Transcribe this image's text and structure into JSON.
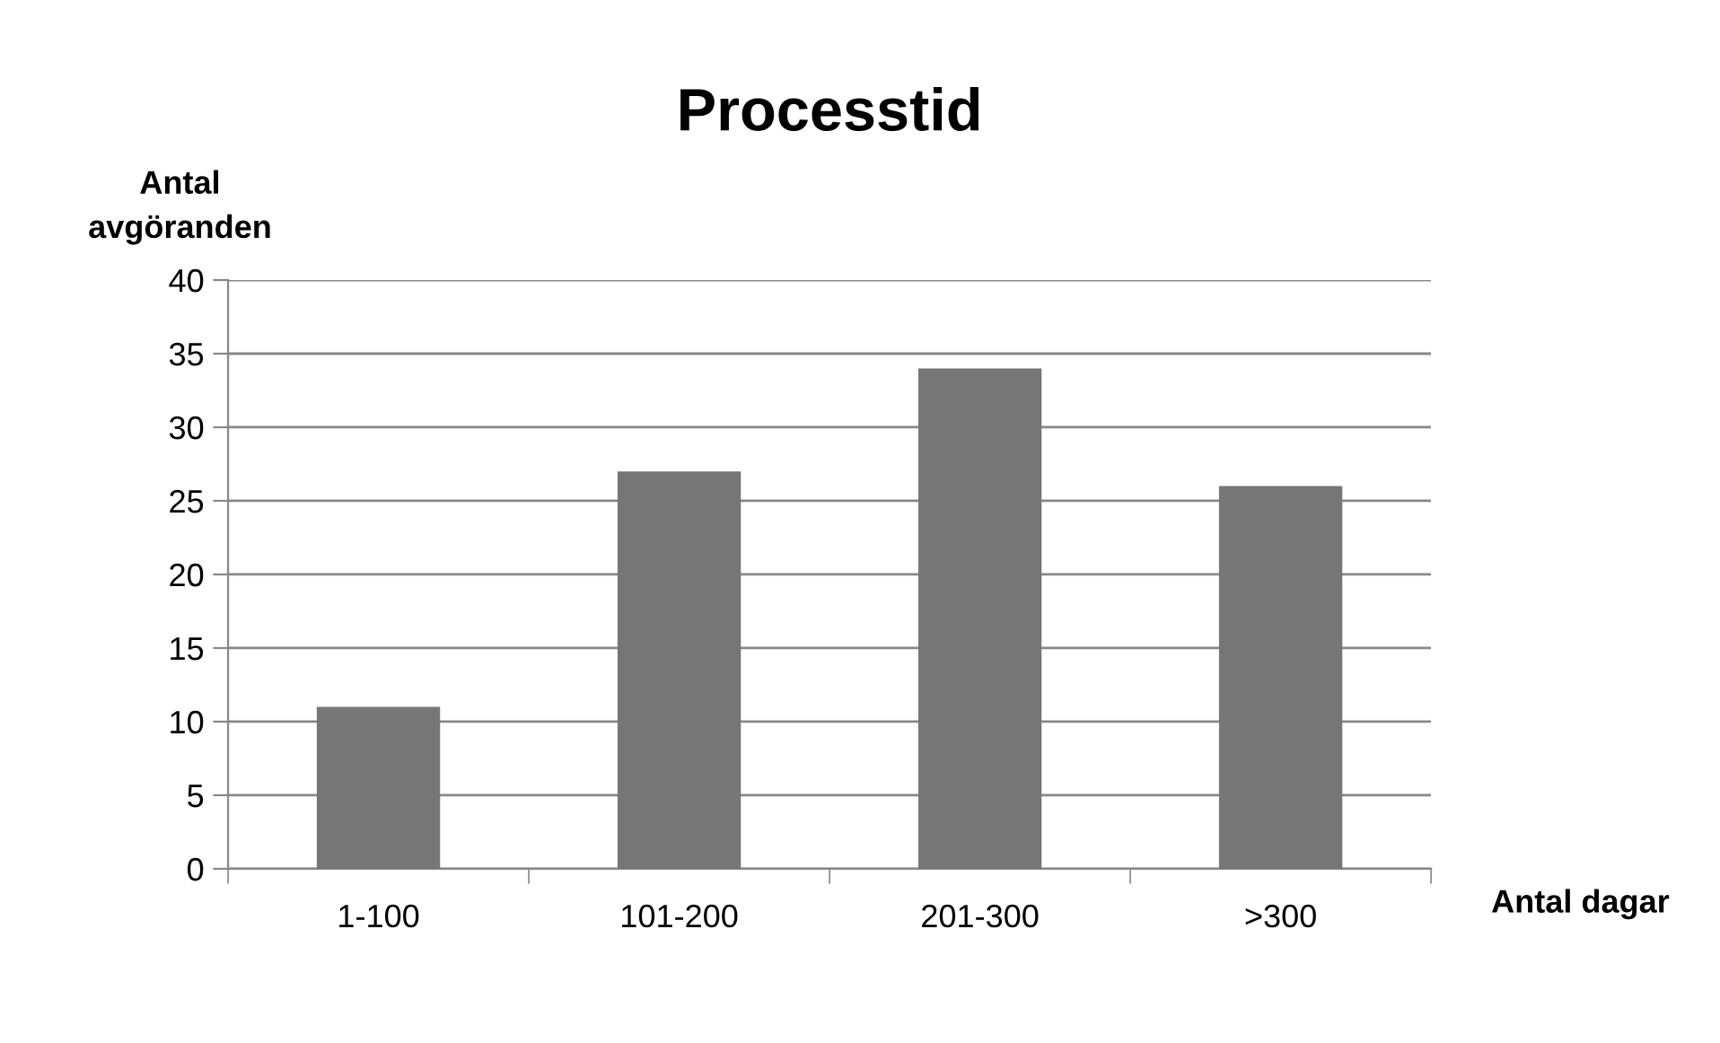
{
  "chart_data": {
    "type": "bar",
    "title": "Processtid",
    "ylabel": "Antal\navgöranden",
    "xlabel": "Antal dagar",
    "categories": [
      "1-100",
      "101-200",
      "201-300",
      ">300"
    ],
    "values": [
      11,
      27,
      34,
      26
    ],
    "color": "#767676",
    "ylim": [
      0,
      40
    ],
    "yticks": [
      0,
      5,
      10,
      15,
      20,
      25,
      30,
      35,
      40
    ],
    "grid": "y",
    "legend": false
  }
}
